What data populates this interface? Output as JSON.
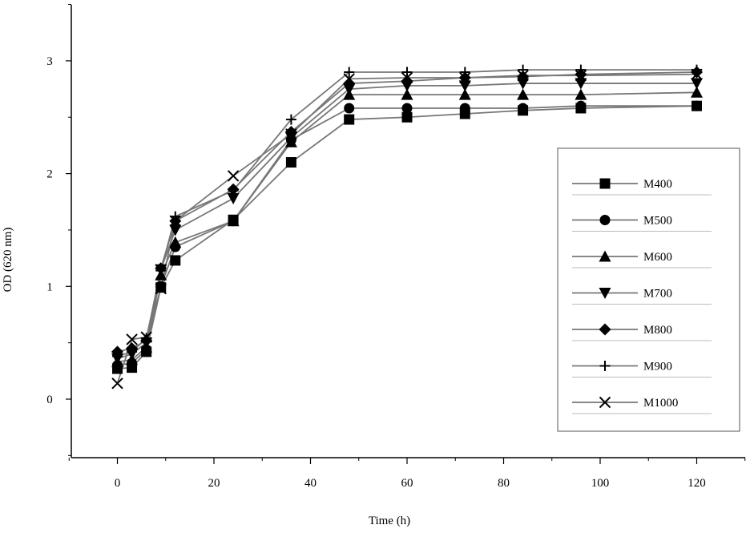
{
  "chart_data": {
    "type": "line",
    "title": "",
    "xlabel": "Time (h)",
    "ylabel": "OD (620 nm)",
    "xlim": [
      -10,
      130
    ],
    "ylim": [
      -0.5,
      3.5
    ],
    "x_ticks": [
      0,
      20,
      40,
      60,
      80,
      100,
      120
    ],
    "y_ticks": [
      0,
      1,
      2,
      3
    ],
    "grid": false,
    "legend_position": "right",
    "x": [
      0,
      3,
      6,
      9,
      12,
      24,
      36,
      48,
      60,
      72,
      84,
      96,
      120
    ],
    "series": [
      {
        "name": "M400",
        "marker": "square",
        "values": [
          0.27,
          0.28,
          0.42,
          0.99,
          1.23,
          1.59,
          2.1,
          2.48,
          2.5,
          2.53,
          2.56,
          2.58,
          2.6
        ]
      },
      {
        "name": "M500",
        "marker": "circle",
        "values": [
          0.3,
          0.32,
          0.44,
          1.0,
          1.35,
          1.58,
          2.3,
          2.58,
          2.58,
          2.58,
          2.58,
          2.6,
          2.6
        ]
      },
      {
        "name": "M600",
        "marker": "triangle-up",
        "values": [
          0.33,
          0.35,
          0.46,
          1.1,
          1.39,
          1.58,
          2.28,
          2.7,
          2.7,
          2.7,
          2.7,
          2.7,
          2.72
        ]
      },
      {
        "name": "M700",
        "marker": "triangle-down",
        "values": [
          0.36,
          0.4,
          0.5,
          1.15,
          1.5,
          1.78,
          2.32,
          2.75,
          2.78,
          2.78,
          2.8,
          2.8,
          2.8
        ]
      },
      {
        "name": "M800",
        "marker": "diamond",
        "values": [
          0.42,
          0.45,
          0.52,
          1.16,
          1.58,
          1.86,
          2.37,
          2.8,
          2.82,
          2.85,
          2.86,
          2.88,
          2.9
        ]
      },
      {
        "name": "M900",
        "marker": "plus",
        "values": [
          0.38,
          0.42,
          0.54,
          1.14,
          1.62,
          1.85,
          2.48,
          2.9,
          2.9,
          2.9,
          2.92,
          2.92,
          2.92
        ]
      },
      {
        "name": "M1000",
        "marker": "x",
        "values": [
          0.14,
          0.53,
          0.55,
          0.98,
          1.58,
          1.98,
          2.35,
          2.84,
          2.85,
          2.85,
          2.87,
          2.87,
          2.88
        ]
      }
    ]
  }
}
